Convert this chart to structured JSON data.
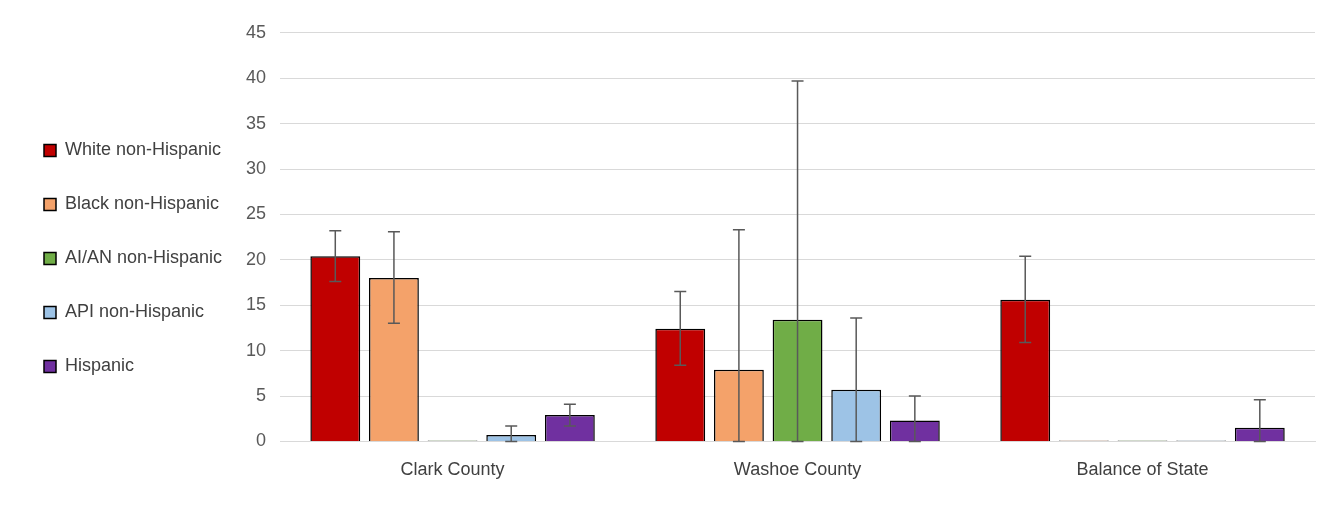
{
  "chart_data": {
    "type": "bar",
    "categories": [
      "Clark County",
      "Washoe County",
      "Balance of State"
    ],
    "ylim": [
      0,
      45
    ],
    "yticks": [
      0,
      5,
      10,
      15,
      20,
      25,
      30,
      35,
      40,
      45
    ],
    "grid": "y",
    "legend": "left",
    "series": [
      {
        "name": "White non-Hispanic",
        "color": "#c00000",
        "values": [
          20.4,
          12.4,
          15.6
        ],
        "errors": [
          [
            17.6,
            23.2
          ],
          [
            8.4,
            16.5
          ],
          [
            10.9,
            20.4
          ]
        ]
      },
      {
        "name": "Black non-Hispanic",
        "color": "#f4a26a",
        "values": [
          18.0,
          7.9,
          0
        ],
        "errors": [
          [
            13.0,
            23.1
          ],
          [
            0,
            23.3
          ],
          null
        ]
      },
      {
        "name": "AI/AN non-Hispanic",
        "color": "#70ad47",
        "values": [
          0,
          13.4,
          0
        ],
        "errors": [
          null,
          [
            0,
            39.7
          ],
          null
        ]
      },
      {
        "name": "API non-Hispanic",
        "color": "#9dc3e6",
        "values": [
          0.7,
          5.7,
          0
        ],
        "errors": [
          [
            0,
            1.7
          ],
          [
            0,
            13.6
          ],
          null
        ]
      },
      {
        "name": "Hispanic",
        "color": "#7030a0",
        "values": [
          2.9,
          2.3,
          1.5
        ],
        "errors": [
          [
            1.7,
            4.1
          ],
          [
            0,
            5.0
          ],
          [
            0,
            4.6
          ]
        ]
      }
    ]
  }
}
